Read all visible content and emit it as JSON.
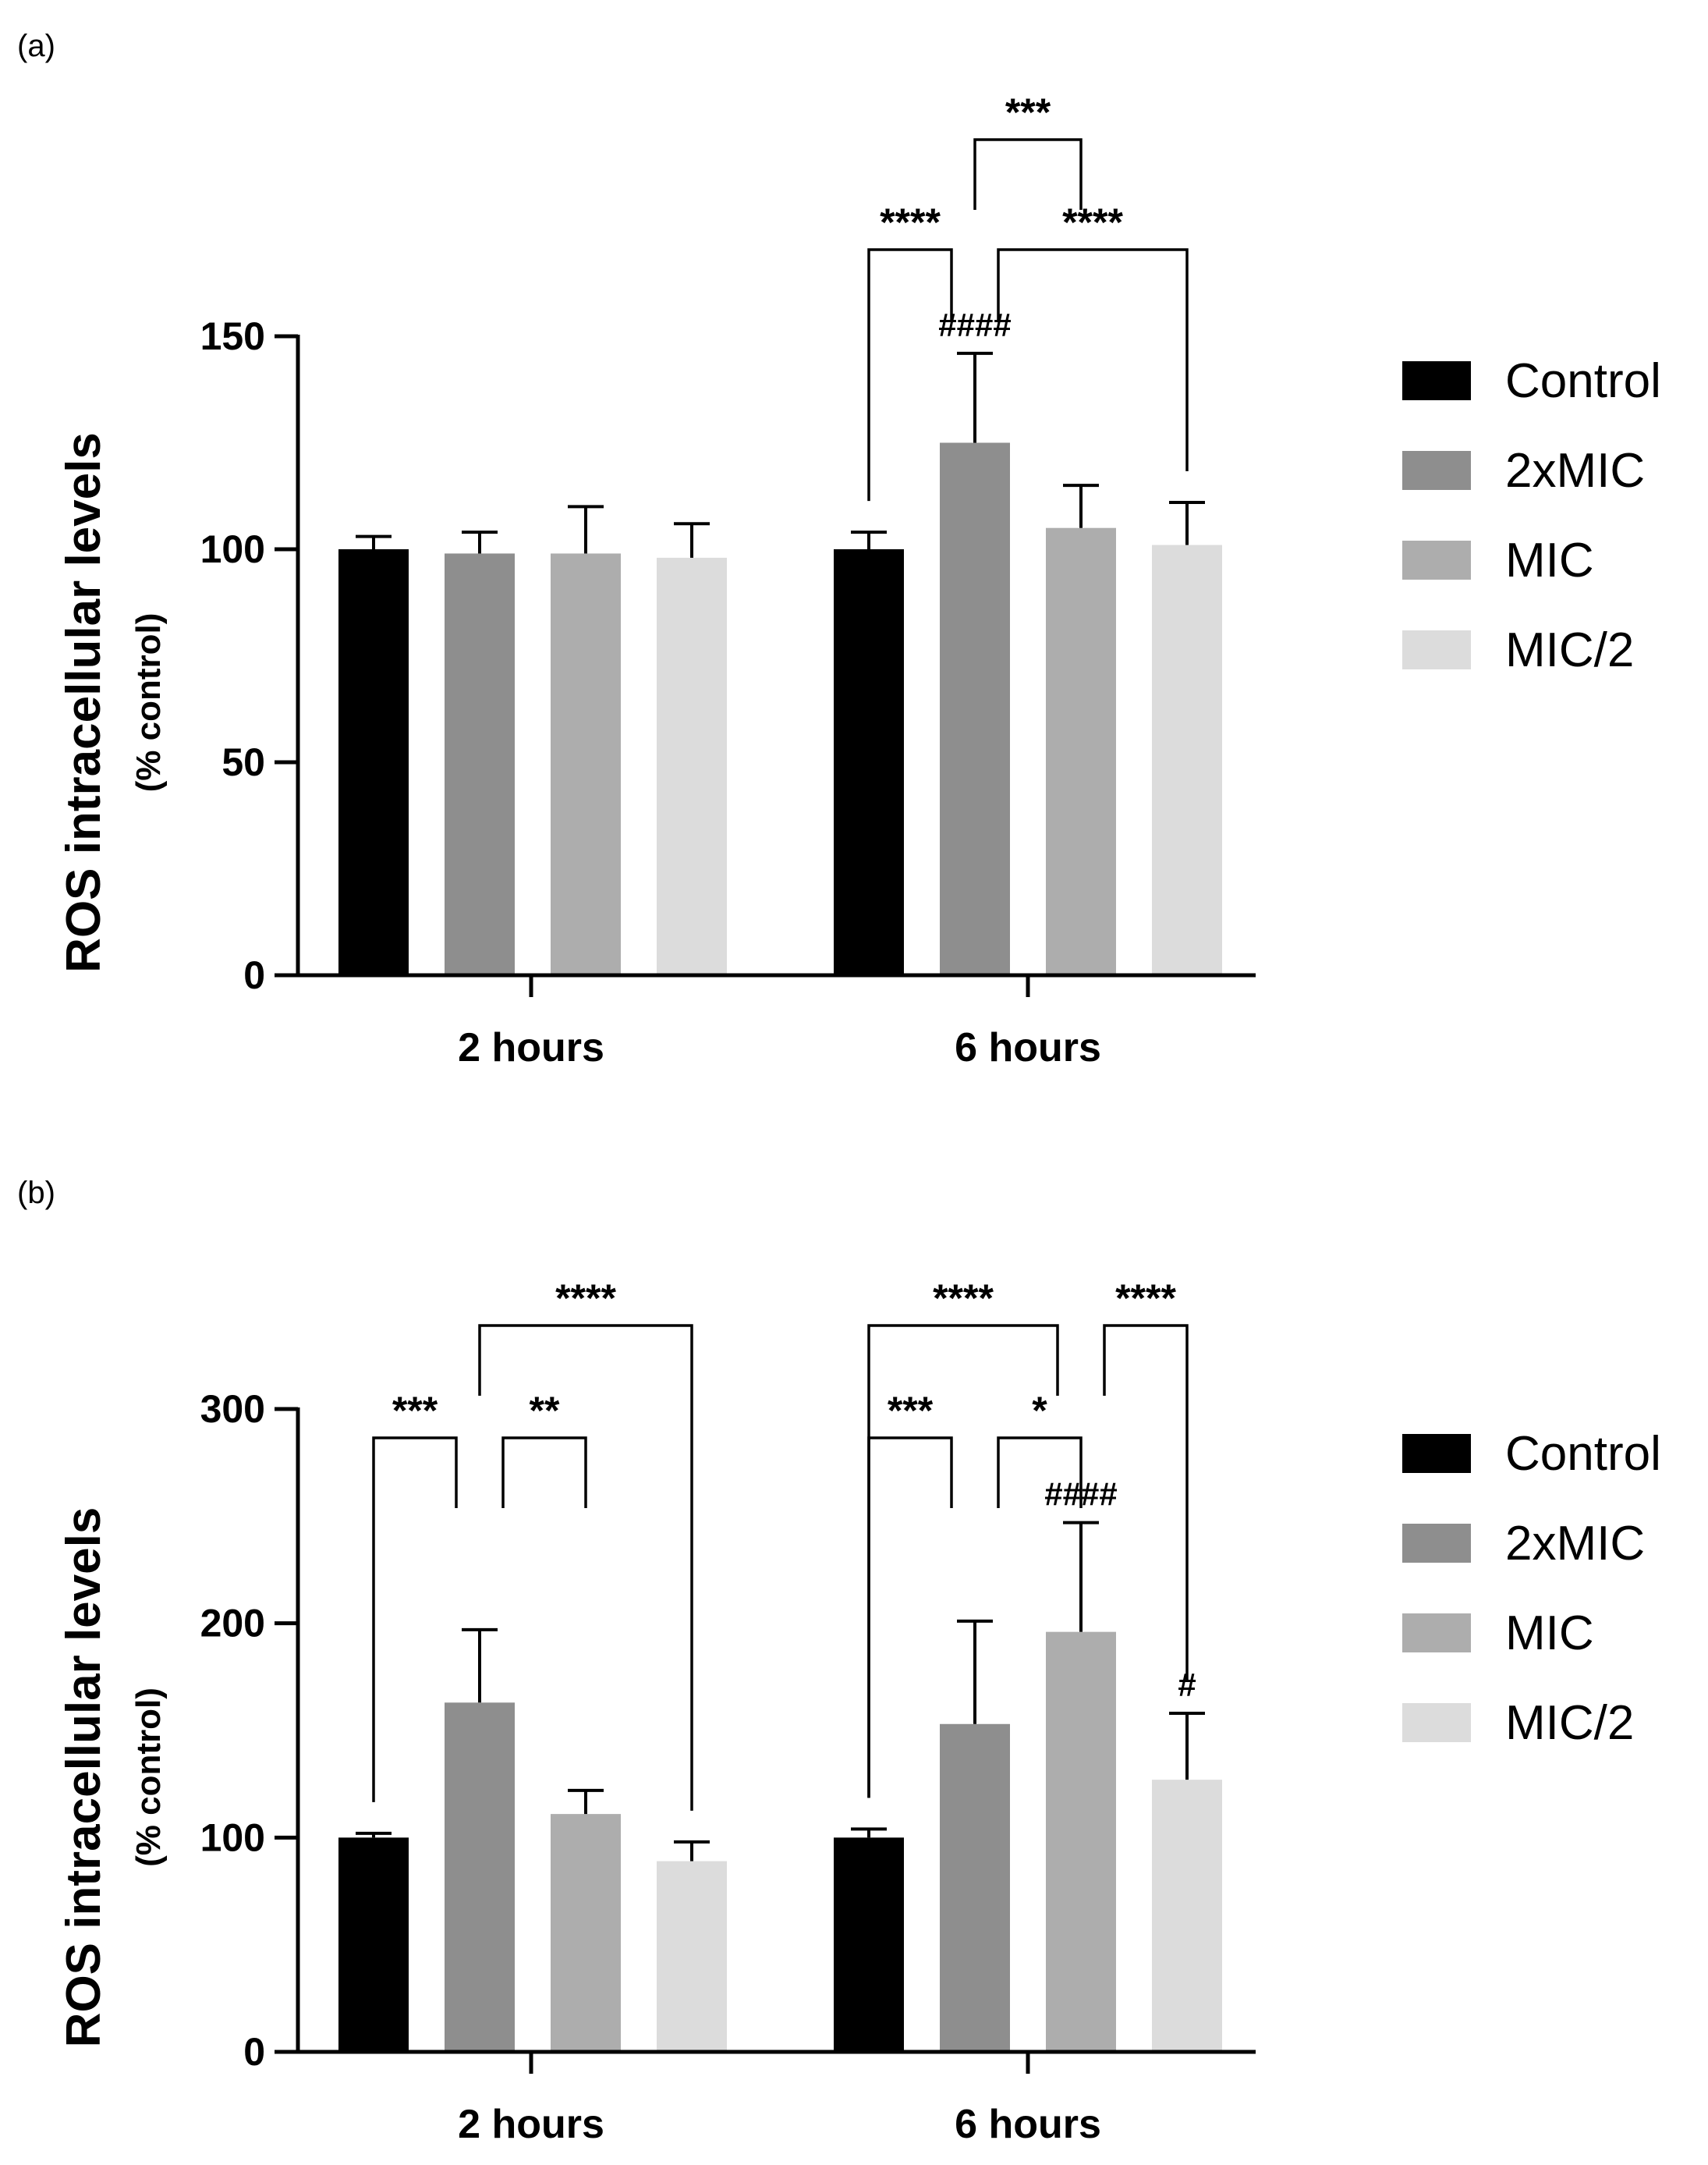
{
  "panels": [
    {
      "label": "(a)",
      "chart_data": {
        "type": "bar",
        "title": "",
        "xlabel": "",
        "ylabel": "ROS intracellular levels",
        "ylabel_sub": "(% control)",
        "ylim": [
          0,
          150
        ],
        "yticks": [
          0,
          50,
          100,
          150
        ],
        "categories": [
          "2 hours",
          "6 hours"
        ],
        "legend_position": "right",
        "series": [
          {
            "name": "Control",
            "color": "#000000",
            "values": [
              100,
              100
            ],
            "errors": [
              3,
              4
            ]
          },
          {
            "name": "2xMIC",
            "color": "#8e8e8e",
            "values": [
              99,
              125
            ],
            "errors": [
              5,
              21
            ]
          },
          {
            "name": "MIC",
            "color": "#adadad",
            "values": [
              99,
              105
            ],
            "errors": [
              11,
              10
            ]
          },
          {
            "name": "MIC/2",
            "color": "#dcdcdc",
            "values": [
              98,
              101
            ],
            "errors": [
              8,
              10
            ]
          }
        ],
        "comparisons": [
          {
            "group": 1,
            "from": 0,
            "to": 1,
            "label": "****",
            "level": 0
          },
          {
            "group": 1,
            "from": 1,
            "to": 3,
            "label": "****",
            "level": 0
          },
          {
            "group": 1,
            "from": 1,
            "to": 2,
            "label": "***",
            "level": 1
          }
        ],
        "markers": [
          {
            "group": 1,
            "series": 1,
            "label": "####"
          }
        ]
      }
    },
    {
      "label": "(b)",
      "chart_data": {
        "type": "bar",
        "title": "",
        "xlabel": "",
        "ylabel": "ROS intracellular levels",
        "ylabel_sub": "(% control)",
        "ylim": [
          0,
          300
        ],
        "yticks": [
          0,
          100,
          200,
          300
        ],
        "categories": [
          "2 hours",
          "6 hours"
        ],
        "legend_position": "right",
        "series": [
          {
            "name": "Control",
            "color": "#000000",
            "values": [
              100,
              100
            ],
            "errors": [
              2,
              4
            ]
          },
          {
            "name": "2xMIC",
            "color": "#8e8e8e",
            "values": [
              163,
              153
            ],
            "errors": [
              34,
              48
            ]
          },
          {
            "name": "MIC",
            "color": "#adadad",
            "values": [
              111,
              196
            ],
            "errors": [
              11,
              51
            ]
          },
          {
            "name": "MIC/2",
            "color": "#dcdcdc",
            "values": [
              89,
              127
            ],
            "errors": [
              9,
              31
            ]
          }
        ],
        "comparisons": [
          {
            "group": 0,
            "from": 0,
            "to": 1,
            "label": "***",
            "level": 0
          },
          {
            "group": 0,
            "from": 1,
            "to": 2,
            "label": "**",
            "level": 0
          },
          {
            "group": 0,
            "from": 1,
            "to": 3,
            "label": "****",
            "level": 1
          },
          {
            "group": 1,
            "from": 0,
            "to": 1,
            "label": "***",
            "level": 0
          },
          {
            "group": 1,
            "from": 1,
            "to": 2,
            "label": "*",
            "level": 0
          },
          {
            "group": 1,
            "from": 0,
            "to": 2,
            "label": "****",
            "level": 1
          },
          {
            "group": 1,
            "from": 2,
            "to": 3,
            "label": "****",
            "level": 1
          }
        ],
        "markers": [
          {
            "group": 1,
            "series": 2,
            "label": "####"
          },
          {
            "group": 1,
            "series": 3,
            "label": "#"
          }
        ]
      }
    }
  ]
}
